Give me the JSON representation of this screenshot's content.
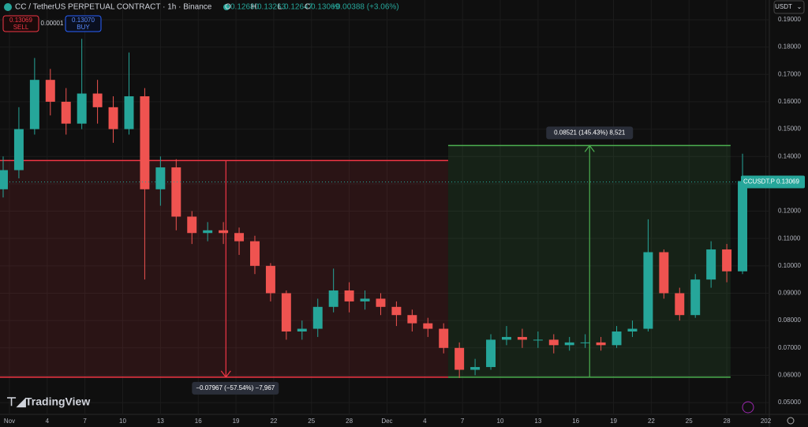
{
  "chart_data": {
    "type": "candlestick",
    "title": "CC / TetherUS PERPETUAL CONTRACT · 1h · Binance",
    "ohlc_labels": [
      "O",
      "H",
      "L",
      "C"
    ],
    "ohlc_values": [
      "0.12680",
      "0.13263",
      "0.12647",
      "0.13069"
    ],
    "change": "+0.00388 (+3.06%)",
    "sell": {
      "price": "0.13069",
      "label": "SELL"
    },
    "buy": {
      "price": "0.13070",
      "label": "BUY"
    },
    "spread": "0.00001",
    "currency": "USDT",
    "brand": "TradingView",
    "last_price": {
      "value": 0.13069,
      "symbol": "CCUSDT.P",
      "label": "0.13069"
    },
    "up_color": "#26a69a",
    "down_color": "#ef5350",
    "grid": true,
    "x": [
      -0.5,
      0.75,
      2,
      3.25,
      4.5,
      5.75,
      7,
      8.25,
      9.5,
      10.75,
      12,
      13.25,
      14.5,
      15.75,
      17,
      18.25,
      19.5,
      20.75,
      22,
      23.25,
      24.5,
      25.75,
      27,
      28.25,
      29.5,
      30.75,
      32,
      33.25,
      34.5,
      35.75,
      37,
      38.25,
      39.5,
      40.75,
      42,
      43.25,
      44.5,
      45.75,
      47,
      48.25,
      49.5,
      50.75,
      52,
      53.25,
      54.5,
      55.75,
      57,
      58.25
    ],
    "open": [
      0.128,
      0.135,
      0.15,
      0.168,
      0.16,
      0.152,
      0.163,
      0.158,
      0.15,
      0.162,
      0.128,
      0.136,
      0.118,
      0.112,
      0.113,
      0.112,
      0.109,
      0.1,
      0.09,
      0.076,
      0.077,
      0.085,
      0.091,
      0.087,
      0.088,
      0.085,
      0.082,
      0.079,
      0.077,
      0.07,
      0.062,
      0.063,
      0.073,
      0.074,
      0.073,
      0.073,
      0.071,
      0.072,
      0.072,
      0.071,
      0.076,
      0.077,
      0.105,
      0.09,
      0.082,
      0.095,
      0.106,
      0.098
    ],
    "high": [
      0.14,
      0.158,
      0.176,
      0.172,
      0.165,
      0.183,
      0.168,
      0.162,
      0.178,
      0.165,
      0.14,
      0.139,
      0.12,
      0.116,
      0.116,
      0.114,
      0.111,
      0.101,
      0.091,
      0.08,
      0.088,
      0.099,
      0.094,
      0.091,
      0.09,
      0.087,
      0.084,
      0.081,
      0.079,
      0.072,
      0.066,
      0.075,
      0.078,
      0.077,
      0.076,
      0.075,
      0.074,
      0.075,
      0.074,
      0.078,
      0.08,
      0.117,
      0.106,
      0.092,
      0.097,
      0.109,
      0.108,
      0.141
    ],
    "low": [
      0.125,
      0.132,
      0.148,
      0.155,
      0.148,
      0.15,
      0.152,
      0.145,
      0.148,
      0.095,
      0.122,
      0.113,
      0.108,
      0.109,
      0.108,
      0.104,
      0.097,
      0.087,
      0.073,
      0.073,
      0.074,
      0.083,
      0.083,
      0.084,
      0.082,
      0.078,
      0.076,
      0.074,
      0.068,
      0.059,
      0.06,
      0.062,
      0.071,
      0.07,
      0.07,
      0.068,
      0.069,
      0.07,
      0.069,
      0.07,
      0.074,
      0.076,
      0.088,
      0.08,
      0.081,
      0.092,
      0.094,
      0.097
    ],
    "close": [
      0.135,
      0.15,
      0.168,
      0.16,
      0.152,
      0.163,
      0.158,
      0.15,
      0.162,
      0.128,
      0.136,
      0.118,
      0.112,
      0.113,
      0.112,
      0.109,
      0.1,
      0.09,
      0.076,
      0.077,
      0.085,
      0.091,
      0.087,
      0.088,
      0.085,
      0.082,
      0.079,
      0.077,
      0.07,
      0.062,
      0.063,
      0.073,
      0.074,
      0.073,
      0.073,
      0.071,
      0.072,
      0.072,
      0.071,
      0.076,
      0.077,
      0.105,
      0.09,
      0.082,
      0.095,
      0.106,
      0.098,
      0.131
    ],
    "measures": [
      {
        "from": 0.1385,
        "to": 0.0593,
        "x_from": -0.75,
        "x_to": 34.86,
        "color": "#f23645",
        "label": "−0.07967 (−57.54%) −7,967"
      },
      {
        "from": 0.0593,
        "to": 0.144,
        "x_from": 34.86,
        "x_to": 57.3,
        "color": "#4caf50",
        "label": "0.08521 (145.43%) 8,521"
      }
    ],
    "xlim": [
      -0.75,
      60.38
    ],
    "ylim": [
      0.0457,
      0.1972
    ],
    "xticks": [
      {
        "value": 0,
        "label": "Nov"
      },
      {
        "value": 3,
        "label": "4"
      },
      {
        "value": 6,
        "label": "7"
      },
      {
        "value": 9,
        "label": "10"
      },
      {
        "value": 12,
        "label": "13"
      },
      {
        "value": 15,
        "label": "16"
      },
      {
        "value": 18,
        "label": "19"
      },
      {
        "value": 21,
        "label": "22"
      },
      {
        "value": 24,
        "label": "25"
      },
      {
        "value": 27,
        "label": "28"
      },
      {
        "value": 30,
        "label": "Dec"
      },
      {
        "value": 33,
        "label": "4"
      },
      {
        "value": 36,
        "label": "7"
      },
      {
        "value": 39,
        "label": "10"
      },
      {
        "value": 42,
        "label": "13"
      },
      {
        "value": 45,
        "label": "16"
      },
      {
        "value": 48,
        "label": "19"
      },
      {
        "value": 51,
        "label": "22"
      },
      {
        "value": 54,
        "label": "25"
      },
      {
        "value": 57,
        "label": "28"
      },
      {
        "value": 60.1,
        "label": "202"
      }
    ],
    "yticks": [
      {
        "value": 0.05,
        "label": "0.05000"
      },
      {
        "value": 0.06,
        "label": "0.06000"
      },
      {
        "value": 0.07,
        "label": "0.07000"
      },
      {
        "value": 0.08,
        "label": "0.08000"
      },
      {
        "value": 0.09,
        "label": "0.09000"
      },
      {
        "value": 0.1,
        "label": "0.10000"
      },
      {
        "value": 0.11,
        "label": "0.11000"
      },
      {
        "value": 0.12,
        "label": "0.12000"
      },
      {
        "value": 0.13,
        "label": "0.13000"
      },
      {
        "value": 0.14,
        "label": "0.14000"
      },
      {
        "value": 0.15,
        "label": "0.15000"
      },
      {
        "value": 0.16,
        "label": "0.16000"
      },
      {
        "value": 0.17,
        "label": "0.17000"
      },
      {
        "value": 0.18,
        "label": "0.18000"
      },
      {
        "value": 0.19,
        "label": "0.19000"
      }
    ]
  }
}
